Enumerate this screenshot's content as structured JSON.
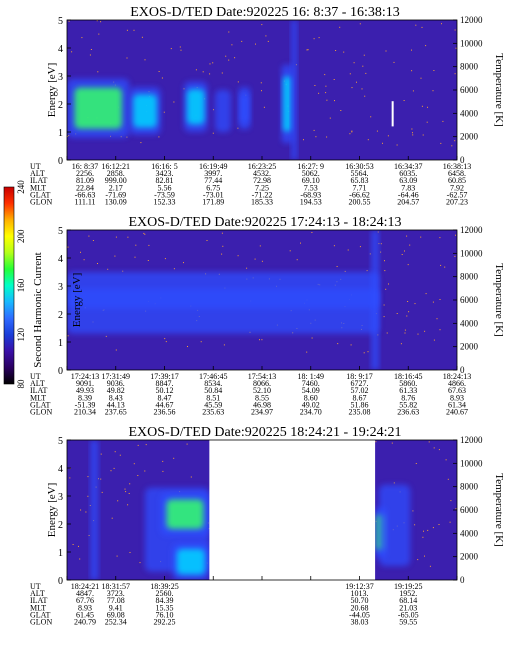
{
  "figure": {
    "colorbar": {
      "label": "Second Harmonic Current",
      "ticks": [
        "80",
        "120",
        "160",
        "200",
        "240"
      ],
      "range": [
        80,
        240
      ],
      "colors": [
        "#000000",
        "#2a0060",
        "#3a10a8",
        "#1a3dd8",
        "#2f6bff",
        "#18b8ff",
        "#00ffc8",
        "#25ff37",
        "#b4ff18",
        "#ffff00",
        "#ffb000",
        "#ff3000",
        "#c80000"
      ]
    },
    "colors": {
      "background": "#3b1fae",
      "band_mid": "#2f4dff",
      "band_high": "#00d5ff",
      "band_peak": "#36ff6a",
      "noise": "#f6a03a"
    }
  },
  "chart_data": [
    {
      "type": "heatmap",
      "title": "EXOS-D/TED   Date:920225  16: 8:37 - 16:38:13",
      "ylabel": "Energy [eV]",
      "y2label": "Temperature [K]",
      "ylim": [
        0,
        5
      ],
      "yticks": [
        "0",
        "1",
        "2",
        "3",
        "4",
        "5"
      ],
      "y2lim": [
        0,
        12000
      ],
      "y2ticks": [
        "0",
        "2000",
        "4000",
        "6000",
        "8000",
        "10000",
        "12000"
      ],
      "grid": false,
      "enhancements": [
        {
          "x0": 0.0,
          "x1": 0.16,
          "e0": 0.8,
          "e1": 2.9,
          "level": 0.95
        },
        {
          "x0": 0.16,
          "x1": 0.24,
          "e0": 0.9,
          "e1": 2.6,
          "level": 0.6
        },
        {
          "x0": 0.3,
          "x1": 0.36,
          "e0": 1.0,
          "e1": 2.8,
          "level": 0.65
        },
        {
          "x0": 0.38,
          "x1": 0.42,
          "e0": 1.0,
          "e1": 2.5,
          "level": 0.5
        },
        {
          "x0": 0.44,
          "x1": 0.47,
          "e0": 1.1,
          "e1": 2.6,
          "level": 0.55
        },
        {
          "x0": 0.55,
          "x1": 0.58,
          "e0": 0.6,
          "e1": 3.4,
          "level": 0.75
        },
        {
          "x0": 0.575,
          "x1": 0.59,
          "e0": 0.0,
          "e1": 5.0,
          "level": 0.45
        }
      ],
      "markers": [
        {
          "x": 0.835,
          "e0": 1.2,
          "e1": 2.1,
          "color": "#ffffff"
        }
      ],
      "table": {
        "labels": [
          "UT",
          "ALT",
          "ILAT",
          "MLT",
          "GLAT",
          "GLON"
        ],
        "columns": [
          [
            "16: 8:37",
            "2256.",
            "81.09",
            "22.84",
            "-66.63",
            "111.11"
          ],
          [
            "16:12:21",
            "2858.",
            "999.00",
            "2.17",
            "-71.69",
            "130.09"
          ],
          [
            "16:16: 5",
            "3423.",
            "82.81",
            "5.56",
            "-73.59",
            "152.33"
          ],
          [
            "16:19:49",
            "3997.",
            "77.44",
            "6.75",
            "-73.01",
            "171.89"
          ],
          [
            "16:23:25",
            "4532.",
            "72.98",
            "7.25",
            "-71.22",
            "185.33"
          ],
          [
            "16:27: 9",
            "5062.",
            "69.10",
            "7.53",
            "-68.93",
            "194.53"
          ],
          [
            "16:30:53",
            "5564.",
            "65.83",
            "7.71",
            "-66.62",
            "200.55"
          ],
          [
            "16:34:37",
            "6035.",
            "63.09",
            "7.83",
            "-64.46",
            "204.57"
          ],
          [
            "16:38:13",
            "6458.",
            "60.85",
            "7.92",
            "-62.57",
            "207.23"
          ]
        ]
      }
    },
    {
      "type": "heatmap",
      "title": "EXOS-D/TED   Date:920225  17:24:13 - 18:24:13",
      "ylabel": "Energy [eV]",
      "y2label": "Temperature [K]",
      "ylim": [
        0,
        5
      ],
      "yticks": [
        "0",
        "1",
        "2",
        "3",
        "4",
        "5"
      ],
      "y2lim": [
        0,
        12000
      ],
      "y2ticks": [
        "0",
        "2000",
        "4000",
        "6000",
        "8000",
        "10000",
        "12000"
      ],
      "grid": false,
      "enhancements": [
        {
          "x0": 0.0,
          "x1": 0.8,
          "e0": 2.2,
          "e1": 2.9,
          "level": 0.45
        },
        {
          "x0": 0.0,
          "x1": 0.8,
          "e0": 1.3,
          "e1": 3.5,
          "level": 0.2
        },
        {
          "x0": 0.78,
          "x1": 0.8,
          "e0": 0.0,
          "e1": 5.0,
          "level": 0.4
        }
      ],
      "markers": [],
      "table": {
        "labels": [
          "UT",
          "ALT",
          "ILAT",
          "MLT",
          "GLAT",
          "GLON"
        ],
        "columns": [
          [
            "17:24:13",
            "9091.",
            "49.93",
            "8.39",
            "-51.39",
            "210.34"
          ],
          [
            "17:31:49",
            "9036.",
            "49.82",
            "8.43",
            "44.13",
            "237.65"
          ],
          [
            "17:39:17",
            "8847.",
            "50.12",
            "8.47",
            "44.67",
            "236.56"
          ],
          [
            "17:46:45",
            "8534.",
            "50.84",
            "8.51",
            "45.59",
            "235.63"
          ],
          [
            "17:54:13",
            "8066.",
            "52.10",
            "8.55",
            "46.98",
            "234.97"
          ],
          [
            "18: 1:49",
            "7460.",
            "54.09",
            "8.60",
            "49.02",
            "234.70"
          ],
          [
            "18: 9:17",
            "6727.",
            "57.02",
            "8.67",
            "51.86",
            "235.08"
          ],
          [
            "18:16:45",
            "5860.",
            "61.33",
            "8.76",
            "55.82",
            "236.63"
          ],
          [
            "18:24:13",
            "4866.",
            "67.63",
            "8.93",
            "61.34",
            "240.67"
          ]
        ]
      }
    },
    {
      "type": "heatmap",
      "title": "EXOS-D/TED   Date:920225  18:24:21 - 19:24:21",
      "ylabel": "Energy [eV]",
      "y2label": "Temperature [K]",
      "ylim": [
        0,
        5
      ],
      "yticks": [
        "0",
        "1",
        "2",
        "3",
        "4",
        "5"
      ],
      "y2lim": [
        0,
        12000
      ],
      "y2ticks": [
        "0",
        "2000",
        "4000",
        "6000",
        "8000",
        "10000",
        "12000"
      ],
      "grid": false,
      "data_gaps": [
        {
          "x0": 0.365,
          "x1": 0.79
        }
      ],
      "enhancements": [
        {
          "x0": 0.06,
          "x1": 0.08,
          "e0": 0.0,
          "e1": 5.0,
          "level": 0.35
        },
        {
          "x0": 0.2,
          "x1": 0.365,
          "e0": 0.3,
          "e1": 3.3,
          "level": 0.35
        },
        {
          "x0": 0.24,
          "x1": 0.365,
          "e0": 1.6,
          "e1": 3.1,
          "level": 0.95
        },
        {
          "x0": 0.27,
          "x1": 0.365,
          "e0": 0.0,
          "e1": 1.3,
          "level": 0.6
        },
        {
          "x0": 0.79,
          "x1": 0.82,
          "e0": 0.8,
          "e1": 2.6,
          "level": 0.95
        },
        {
          "x0": 0.8,
          "x1": 0.88,
          "e0": 0.5,
          "e1": 3.4,
          "level": 0.35
        }
      ],
      "markers": [],
      "table": {
        "labels": [
          "UT",
          "ALT",
          "ILAT",
          "MLT",
          "GLAT",
          "GLON"
        ],
        "columns": [
          [
            "18:24:21",
            "4847.",
            "67.76",
            "8.93",
            "61.45",
            "240.79"
          ],
          [
            "18:31:57",
            "3723.",
            "77.08",
            "9.41",
            "69.08",
            "252.34"
          ],
          [
            "18:39:25",
            "2560.",
            "84.39",
            "15.35",
            "76.10",
            "292.25"
          ],
          [
            "",
            "",
            "",
            "",
            "",
            ""
          ],
          [
            "",
            "",
            "",
            "",
            "",
            ""
          ],
          [
            "",
            "",
            "",
            "",
            "",
            ""
          ],
          [
            "19:12:37",
            "1013.",
            "50.70",
            "20.68",
            "-44.05",
            "38.03"
          ],
          [
            "19:19:25",
            "1952.",
            "68.14",
            "21.03",
            "-65.05",
            "59.55"
          ],
          [
            "",
            "",
            "",
            "",
            "",
            ""
          ]
        ]
      }
    }
  ]
}
